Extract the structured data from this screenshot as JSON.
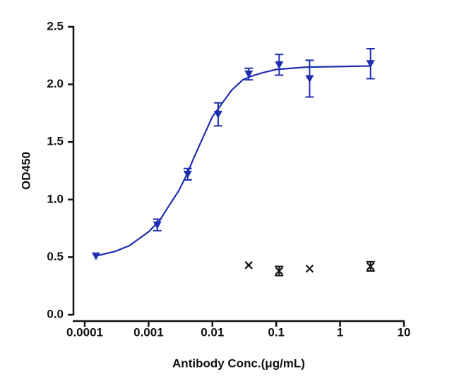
{
  "chart_data": {
    "type": "scatter",
    "x_label": "Antibody Conc.(μg/mL)",
    "y_label": "OD450",
    "xscale": "log",
    "xlim": [
      0.0001,
      10
    ],
    "xticks": [
      0.0001,
      0.001,
      0.01,
      0.1,
      1,
      10
    ],
    "ylim": [
      0,
      2.5
    ],
    "yticks": [
      {
        "value": 0,
        "label": "0.0"
      },
      0.5,
      {
        "value": 1,
        "label": "1.0"
      },
      1.5,
      {
        "value": 2,
        "label": "2.0"
      },
      2.5
    ],
    "series": [
      {
        "marker": "triangle-down",
        "color": "#1f2eb0",
        "x": [
          0.00015,
          0.00137,
          0.0041,
          0.0123,
          0.037,
          0.111,
          0.333,
          3
        ],
        "values": [
          0.51,
          0.78,
          1.22,
          1.74,
          2.09,
          2.17,
          2.05,
          2.18
        ],
        "errors": [
          null,
          0.05,
          0.05,
          0.1,
          0.05,
          0.09,
          0.16,
          0.13
        ]
      },
      {
        "marker": "x",
        "color": "#111111",
        "x": [
          0.037,
          0.111,
          0.333,
          3
        ],
        "values": [
          0.43,
          0.38,
          0.4,
          0.42
        ],
        "errors": [
          null,
          0.04,
          null,
          0.04
        ]
      },
      {
        "marker": "line",
        "color": "#1f2eb0",
        "x": [
          0.00015,
          0.0003,
          0.0005,
          0.001,
          0.0015,
          0.002,
          0.003,
          0.004,
          0.005,
          0.007,
          0.01,
          0.012,
          0.02,
          0.03,
          0.04,
          0.06,
          0.1,
          0.3,
          3
        ],
        "values": [
          0.51,
          0.55,
          0.6,
          0.72,
          0.82,
          0.93,
          1.08,
          1.22,
          1.35,
          1.53,
          1.72,
          1.78,
          1.95,
          2.04,
          2.07,
          2.1,
          2.13,
          2.15,
          2.16
        ]
      }
    ]
  }
}
